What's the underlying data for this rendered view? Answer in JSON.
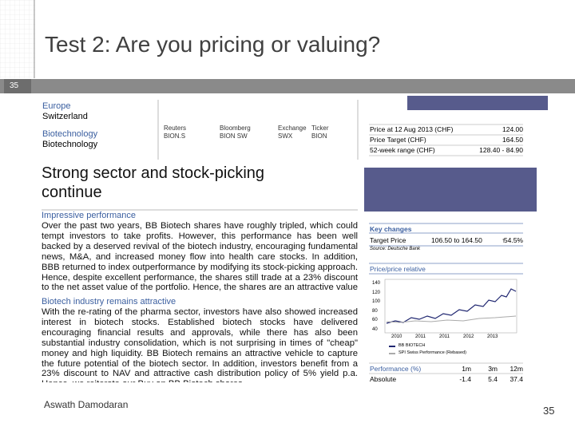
{
  "slide": {
    "title": "Test 2: Are you pricing or valuing?",
    "slide_number_tab": "35",
    "footer": "Aswath Damodaran",
    "page_number": "35"
  },
  "report": {
    "region": "Europe",
    "country": "Switzerland",
    "sector": "Biotechnology",
    "industry": "Biotechnology",
    "codes": {
      "headers": [
        "Reuters",
        "Bloomberg",
        "Exchange",
        "Ticker"
      ],
      "values": [
        "BION.S",
        "BION SW",
        "SWX",
        "BION"
      ]
    },
    "headline": "Strong sector and stock-picking continue",
    "sections": [
      {
        "heading": "Impressive performance",
        "text": "Over the past two years, BB Biotech shares have roughly tripled, which could tempt investors to take profits. However, this performance has been well backed by a deserved revival of the biotech industry, encouraging fundamental news, M&A, and increased money flow into health care stocks. In addition, BBB returned to index outperformance by modifying its stock-picking approach. Hence, despite excellent performance, the shares still trade at a 23% discount to the net asset value of the portfolio. Hence, the shares are an attractive value vehicle to capture growth opportunities in an attractive sector."
      },
      {
        "heading": "Biotech industry remains attractive",
        "text": "With the re-rating of the pharma sector, investors have also showed increased interest in biotech stocks. Established biotech stocks have delivered encouraging financial results and approvals, while there has also been substantial industry consolidation, which is not surprising in times of \"cheap\" money and high liquidity. BB Biotech remains an attractive vehicle to capture the future potential of the biotech sector. In addition, investors benefit from a 23% discount to NAV and attractive cash distribution policy of 5% yield p.a. Hence, we reiterate our Buy on BB Biotech shares."
      }
    ],
    "price_table": [
      [
        "Price at 12 Aug 2013 (CHF)",
        "124.00"
      ],
      [
        "Price Target (CHF)",
        "164.50"
      ],
      [
        "52-week range (CHF)",
        "128.40 - 84.90"
      ]
    ],
    "key_changes": {
      "heading": "Key changes",
      "row": [
        "Target Price",
        "106.50 to 164.50",
        "↑",
        "54.5%"
      ],
      "source": "Source: Deutsche Bank"
    },
    "price_chart": {
      "title": "Price/price relative",
      "yticks": [
        "140",
        "120",
        "100",
        "80",
        "60",
        "40"
      ],
      "xticks": [
        "2010",
        "2011",
        "2011",
        "2012",
        "2013"
      ],
      "legend": [
        "BB BIOTECH",
        "SPI Swiss Performance (Rebased)"
      ]
    },
    "performance": {
      "header": [
        "Performance (%)",
        "1m",
        "3m",
        "12m"
      ],
      "row": [
        "Absolute",
        "-1.4",
        "5.4",
        "37.4"
      ]
    }
  }
}
